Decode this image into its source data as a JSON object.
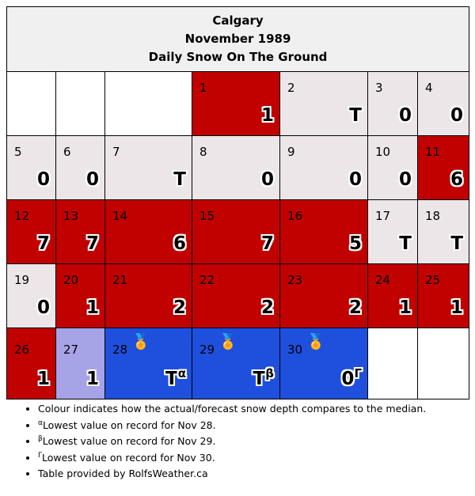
{
  "header": {
    "city": "Calgary",
    "month": "November 1989",
    "subtitle": "Daily Snow On The Ground"
  },
  "colors": {
    "below_median": "#c10000",
    "median": "#ece6e8",
    "above_median": "#a6a3e7",
    "record_low": "#1f4fdd",
    "empty": "#ffffff"
  },
  "days": [
    {
      "day": "1",
      "value": "1"
    },
    {
      "day": "2",
      "value": "T"
    },
    {
      "day": "3",
      "value": "0"
    },
    {
      "day": "4",
      "value": "0"
    },
    {
      "day": "5",
      "value": "0"
    },
    {
      "day": "6",
      "value": "0"
    },
    {
      "day": "7",
      "value": "T"
    },
    {
      "day": "8",
      "value": "0"
    },
    {
      "day": "9",
      "value": "0"
    },
    {
      "day": "10",
      "value": "0"
    },
    {
      "day": "11",
      "value": "6"
    },
    {
      "day": "12",
      "value": "7"
    },
    {
      "day": "13",
      "value": "7"
    },
    {
      "day": "14",
      "value": "6"
    },
    {
      "day": "15",
      "value": "7"
    },
    {
      "day": "16",
      "value": "5"
    },
    {
      "day": "17",
      "value": "T"
    },
    {
      "day": "18",
      "value": "T"
    },
    {
      "day": "19",
      "value": "0"
    },
    {
      "day": "20",
      "value": "1"
    },
    {
      "day": "21",
      "value": "2"
    },
    {
      "day": "22",
      "value": "2"
    },
    {
      "day": "23",
      "value": "2"
    },
    {
      "day": "24",
      "value": "1"
    },
    {
      "day": "25",
      "value": "1"
    },
    {
      "day": "26",
      "value": "1"
    },
    {
      "day": "27",
      "value": "1"
    },
    {
      "day": "28",
      "value": "T",
      "mark": "α",
      "medal": "🏅"
    },
    {
      "day": "29",
      "value": "T",
      "mark": "β",
      "medal": "🏅"
    },
    {
      "day": "30",
      "value": "0",
      "mark": "Γ",
      "medal": "🏅"
    }
  ],
  "notes": [
    {
      "mark": "",
      "text": "Colour indicates how the actual/forecast snow depth compares to the median."
    },
    {
      "mark": "α",
      "text": "Lowest value on record for Nov 28."
    },
    {
      "mark": "β",
      "text": "Lowest value on record for Nov 29."
    },
    {
      "mark": "Γ",
      "text": "Lowest value on record for Nov 30."
    },
    {
      "mark": "",
      "text": "Table provided by RolfsWeather.ca"
    }
  ]
}
